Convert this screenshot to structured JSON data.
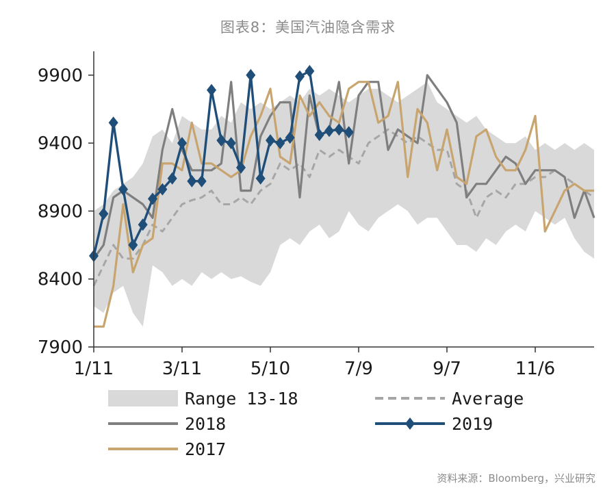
{
  "chart_data": {
    "type": "line",
    "title": "图表8：美国汽油隐含需求",
    "source": "资料来源：Bloomberg，兴业研究",
    "ylim": [
      7900,
      10050
    ],
    "yticks": [
      7900,
      8400,
      8900,
      9400,
      9900
    ],
    "xlim": [
      1,
      52
    ],
    "xticks": [
      {
        "label": "1/11",
        "week": 1
      },
      {
        "label": "3/11",
        "week": 10
      },
      {
        "label": "5/10",
        "week": 19
      },
      {
        "label": "7/9",
        "week": 28
      },
      {
        "label": "9/7",
        "week": 37
      },
      {
        "label": "11/6",
        "week": 46
      }
    ],
    "colors": {
      "range": "#d9d9d9",
      "average": "#a6a6a6",
      "s2018": "#7f7f7f",
      "s2019": "#1f4e79",
      "s2017": "#c8a46e",
      "axis": "#333333"
    },
    "range": {
      "name": "Range 13-18",
      "x": [
        1,
        2,
        3,
        4,
        5,
        6,
        7,
        8,
        9,
        10,
        11,
        12,
        13,
        14,
        15,
        16,
        17,
        18,
        19,
        20,
        21,
        22,
        23,
        24,
        25,
        26,
        27,
        28,
        29,
        30,
        31,
        32,
        33,
        34,
        35,
        36,
        37,
        38,
        39,
        40,
        41,
        42,
        43,
        44,
        45,
        46,
        47,
        48,
        49,
        50,
        51,
        52
      ],
      "low": [
        8200,
        8150,
        8300,
        8350,
        8150,
        8050,
        8500,
        8450,
        8350,
        8400,
        8350,
        8450,
        8400,
        8450,
        8400,
        8420,
        8380,
        8350,
        8450,
        8650,
        8700,
        8650,
        8750,
        8800,
        8700,
        8750,
        8900,
        8800,
        8750,
        8850,
        8900,
        8950,
        8900,
        8800,
        8850,
        8850,
        8750,
        8650,
        8650,
        8600,
        8700,
        8650,
        8750,
        8800,
        8750,
        8900,
        8850,
        8800,
        8850,
        8700,
        8600,
        8550
      ],
      "high": [
        8900,
        8950,
        9050,
        9100,
        9150,
        9250,
        9450,
        9500,
        9400,
        9600,
        9550,
        9500,
        9500,
        9600,
        9550,
        9700,
        9650,
        9700,
        9650,
        9700,
        9750,
        9700,
        9800,
        9750,
        9800,
        9750,
        9700,
        9750,
        9800,
        9800,
        9750,
        9700,
        9750,
        9800,
        9850,
        9700,
        9650,
        9600,
        9550,
        9600,
        9500,
        9450,
        9400,
        9400,
        9450,
        9350,
        9400,
        9350,
        9400,
        9350,
        9400,
        9350
      ]
    },
    "series": [
      {
        "name": "Average",
        "x": [
          1,
          2,
          3,
          4,
          5,
          6,
          7,
          8,
          9,
          10,
          11,
          12,
          13,
          14,
          15,
          16,
          17,
          18,
          19,
          20,
          21,
          22,
          23,
          24,
          25,
          26,
          27,
          28,
          29,
          30,
          31,
          32,
          33,
          34,
          35,
          36,
          37,
          38,
          39,
          40,
          41,
          42,
          43,
          44,
          45,
          46,
          47,
          48,
          49,
          50,
          51,
          52
        ],
        "values": [
          8350,
          8500,
          8650,
          8550,
          8550,
          8650,
          8800,
          8750,
          8850,
          8950,
          8980,
          9000,
          9050,
          8950,
          8950,
          9000,
          8950,
          9050,
          9100,
          9250,
          9200,
          9250,
          9150,
          9350,
          9300,
          9350,
          9300,
          9250,
          9400,
          9450,
          9500,
          9450,
          9400,
          9450,
          9400,
          9350,
          9350,
          9100,
          9050,
          8850,
          9000,
          9050,
          9000,
          9100,
          9100,
          9150,
          9150,
          9200,
          9150,
          9100,
          9050,
          9000
        ]
      },
      {
        "name": "2018",
        "x": [
          1,
          2,
          3,
          4,
          5,
          6,
          7,
          8,
          9,
          10,
          11,
          12,
          13,
          14,
          15,
          16,
          17,
          18,
          19,
          20,
          21,
          22,
          23,
          24,
          25,
          26,
          27,
          28,
          29,
          30,
          31,
          32,
          33,
          34,
          35,
          36,
          37,
          38,
          39,
          40,
          41,
          42,
          43,
          44,
          45,
          46,
          47,
          48,
          49,
          50,
          51,
          52
        ],
        "values": [
          8550,
          8650,
          9000,
          9050,
          9000,
          8950,
          8850,
          9350,
          9650,
          9350,
          9200,
          9200,
          9200,
          9250,
          9850,
          9050,
          9050,
          9450,
          9600,
          9700,
          9700,
          9000,
          9750,
          9450,
          9500,
          9850,
          9250,
          9750,
          9850,
          9850,
          9350,
          9500,
          9450,
          9400,
          9900,
          9800,
          9700,
          9550,
          9000,
          9100,
          9100,
          9200,
          9300,
          9250,
          9100,
          9200,
          9200,
          9200,
          9150,
          8850,
          9050,
          8850
        ]
      },
      {
        "name": "2017",
        "x": [
          1,
          2,
          3,
          4,
          5,
          6,
          7,
          8,
          9,
          10,
          11,
          12,
          13,
          14,
          15,
          16,
          17,
          18,
          19,
          20,
          21,
          22,
          23,
          24,
          25,
          26,
          27,
          28,
          29,
          30,
          31,
          32,
          33,
          34,
          35,
          36,
          37,
          38,
          39,
          40,
          41,
          42,
          43,
          44,
          45,
          46,
          47,
          48,
          49,
          50,
          51,
          52
        ],
        "values": [
          8050,
          8050,
          8350,
          8950,
          8450,
          8650,
          8700,
          9250,
          9250,
          9200,
          9550,
          9250,
          9250,
          9200,
          9150,
          9200,
          9450,
          9600,
          9800,
          9300,
          9250,
          9750,
          9600,
          9700,
          9600,
          9550,
          9800,
          9850,
          9850,
          9550,
          9600,
          9850,
          9150,
          9650,
          9550,
          9200,
          9500,
          9150,
          9100,
          9450,
          9500,
          9300,
          9200,
          9200,
          9350,
          9600,
          8750,
          8900,
          9050,
          9100,
          9050,
          9050
        ]
      },
      {
        "name": "2019",
        "x": [
          1,
          2,
          3,
          4,
          5,
          6,
          7,
          8,
          9,
          10,
          11,
          12,
          13,
          14,
          15,
          16,
          17,
          18,
          19,
          20,
          21,
          22,
          23,
          24,
          25,
          26,
          27
        ],
        "values": [
          8570,
          8880,
          9550,
          9060,
          8650,
          8800,
          8990,
          9060,
          9140,
          9400,
          9120,
          9120,
          9790,
          9420,
          9400,
          9220,
          9900,
          9140,
          9420,
          9400,
          9440,
          9890,
          9930,
          9460,
          9490,
          9500,
          9480
        ]
      }
    ],
    "legend": [
      {
        "key": "range",
        "label": "Range 13-18"
      },
      {
        "key": "average",
        "label": "Average"
      },
      {
        "key": "s2018",
        "label": "2018"
      },
      {
        "key": "s2019",
        "label": "2019"
      },
      {
        "key": "s2017",
        "label": "2017"
      }
    ]
  }
}
